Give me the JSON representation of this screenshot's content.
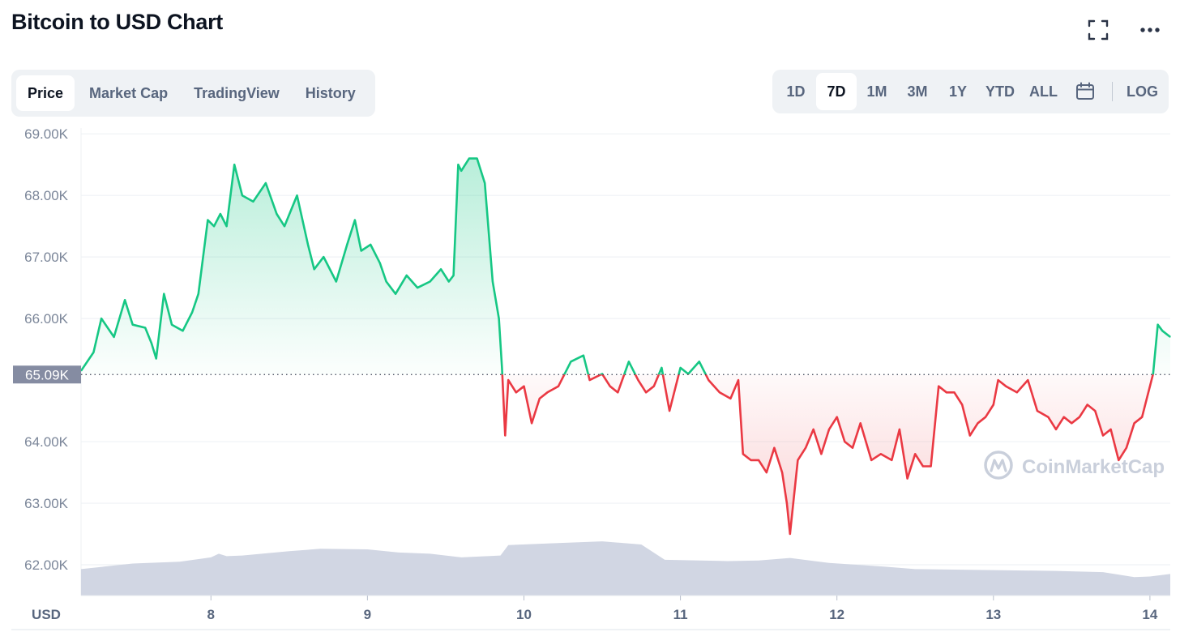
{
  "title": "Bitcoin to USD Chart",
  "header_icons": [
    "fullscreen-icon",
    "more-icon"
  ],
  "tabs": [
    {
      "label": "Price",
      "active": true
    },
    {
      "label": "Market Cap",
      "active": false
    },
    {
      "label": "TradingView",
      "active": false
    },
    {
      "label": "History",
      "active": false
    }
  ],
  "ranges": [
    {
      "label": "1D",
      "active": false
    },
    {
      "label": "7D",
      "active": true
    },
    {
      "label": "1M",
      "active": false
    },
    {
      "label": "3M",
      "active": false
    },
    {
      "label": "1Y",
      "active": false
    },
    {
      "label": "YTD",
      "active": false
    },
    {
      "label": "ALL",
      "active": false
    }
  ],
  "calendar_icon": "calendar-icon",
  "log_label": "LOG",
  "watermark": "CoinMarketCap",
  "colors": {
    "up": "#16c784",
    "down": "#ea3943",
    "volume": "#d1d6e3",
    "grid": "#eff2f5",
    "baseline_label_bg": "#858ca2"
  },
  "chart_data": {
    "type": "line",
    "title": "",
    "ylabel": "",
    "xlabel": "USD",
    "x_unit_label": "USD",
    "ylim": [
      61500,
      69200
    ],
    "xlim": [
      7.17,
      14.13
    ],
    "y_ticks": [
      "69.00K",
      "68.00K",
      "67.00K",
      "66.00K",
      "64.00K",
      "63.00K",
      "62.00K"
    ],
    "y_tick_values": [
      69000,
      68000,
      67000,
      66000,
      64000,
      63000,
      62000
    ],
    "x_ticks": [
      "8",
      "9",
      "10",
      "11",
      "12",
      "13",
      "14"
    ],
    "x_tick_values": [
      8,
      9,
      10,
      11,
      12,
      13,
      14
    ],
    "baseline": {
      "value": 65090,
      "label": "65.09K"
    },
    "series": [
      {
        "x": [
          7.17,
          7.25,
          7.3,
          7.38,
          7.45,
          7.5,
          7.58,
          7.62,
          7.65,
          7.7,
          7.75,
          7.82,
          7.88,
          7.92,
          7.98,
          8.02,
          8.06,
          8.1,
          8.15,
          8.2,
          8.27,
          8.35,
          8.42,
          8.47,
          8.55,
          8.62,
          8.66,
          8.72,
          8.8,
          8.87,
          8.92,
          8.96,
          9.02,
          9.08,
          9.12,
          9.18,
          9.25,
          9.32,
          9.4,
          9.47,
          9.52,
          9.55,
          9.58,
          9.6,
          9.65,
          9.7,
          9.75,
          9.8,
          9.84,
          9.86,
          9.88,
          9.9,
          9.95,
          10.0,
          10.05,
          10.1,
          10.15,
          10.22,
          10.3,
          10.38,
          10.42,
          10.5,
          10.55,
          10.6,
          10.67,
          10.73,
          10.78,
          10.83,
          10.88,
          10.93,
          11.0,
          11.05,
          11.12,
          11.18,
          11.25,
          11.32,
          11.37,
          11.4,
          11.45,
          11.5,
          11.55,
          11.6,
          11.65,
          11.68,
          11.7,
          11.75,
          11.8,
          11.85,
          11.9,
          11.95,
          12.0,
          12.05,
          12.1,
          12.15,
          12.22,
          12.28,
          12.35,
          12.4,
          12.45,
          12.5,
          12.55,
          12.6,
          12.65,
          12.7,
          12.75,
          12.8,
          12.85,
          12.9,
          12.95,
          13.0,
          13.03,
          13.08,
          13.15,
          13.22,
          13.28,
          13.35,
          13.4,
          13.45,
          13.5,
          13.55,
          13.6,
          13.65,
          13.7,
          13.75,
          13.8,
          13.85,
          13.9,
          13.95,
          13.98,
          14.02,
          14.05,
          14.08,
          14.13
        ],
        "values": [
          65150,
          65450,
          66000,
          65700,
          66300,
          65900,
          65850,
          65600,
          65350,
          66400,
          65900,
          65800,
          66100,
          66400,
          67600,
          67500,
          67700,
          67500,
          68500,
          68000,
          67900,
          68200,
          67700,
          67500,
          68000,
          67200,
          66800,
          67000,
          66600,
          67200,
          67600,
          67100,
          67200,
          66900,
          66600,
          66400,
          66700,
          66500,
          66600,
          66800,
          66600,
          66700,
          68500,
          68400,
          68600,
          68600,
          68200,
          66600,
          66000,
          65200,
          64100,
          65000,
          64800,
          64900,
          64300,
          64700,
          64800,
          64900,
          65300,
          65400,
          65000,
          65100,
          64900,
          64800,
          65300,
          65000,
          64800,
          64900,
          65200,
          64500,
          65200,
          65100,
          65300,
          65000,
          64800,
          64700,
          65000,
          63800,
          63700,
          63700,
          63500,
          63900,
          63500,
          63000,
          62500,
          63700,
          63900,
          64200,
          63800,
          64200,
          64400,
          64000,
          63900,
          64300,
          63700,
          63800,
          63700,
          64200,
          63400,
          63800,
          63600,
          63600,
          64900,
          64800,
          64800,
          64600,
          64100,
          64300,
          64400,
          64600,
          65000,
          64900,
          64800,
          65000,
          64500,
          64400,
          64200,
          64400,
          64300,
          64400,
          64600,
          64500,
          64100,
          64200,
          63700,
          63900,
          64300,
          64400,
          64700,
          65100,
          65900,
          65800,
          65700
        ]
      }
    ],
    "volume": {
      "x": [
        7.17,
        7.5,
        7.8,
        8.0,
        8.05,
        8.1,
        8.2,
        8.5,
        8.7,
        9.0,
        9.2,
        9.4,
        9.6,
        9.85,
        9.9,
        10.2,
        10.5,
        10.75,
        10.9,
        11.3,
        11.5,
        11.7,
        11.95,
        12.3,
        12.5,
        12.8,
        13.1,
        13.4,
        13.7,
        13.9,
        14.0,
        14.13
      ],
      "values": [
        61930,
        62020,
        62050,
        62120,
        62180,
        62140,
        62150,
        62220,
        62260,
        62250,
        62200,
        62180,
        62120,
        62150,
        62320,
        62350,
        62380,
        62330,
        62080,
        62060,
        62070,
        62110,
        62030,
        61970,
        61930,
        61920,
        61910,
        61900,
        61880,
        61800,
        61810,
        61850
      ]
    }
  }
}
